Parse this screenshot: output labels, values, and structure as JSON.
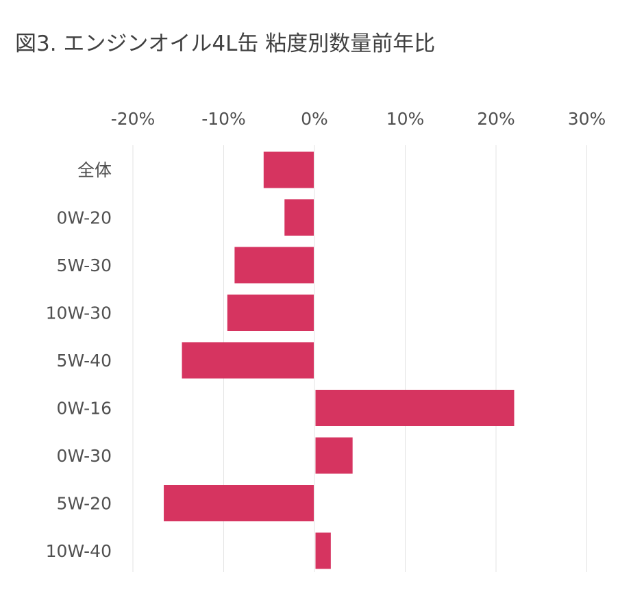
{
  "title": "図3. エンジンオイル4L缶 粘度別数量前年比",
  "chart_data": {
    "type": "bar",
    "orientation": "horizontal",
    "title": "図3. エンジンオイル4L缶 粘度別数量前年比",
    "xlabel": "",
    "ylabel": "",
    "categories": [
      "全体",
      "0W-20",
      "5W-30",
      "10W-30",
      "5W-40",
      "0W-16",
      "0W-30",
      "5W-20",
      "10W-40"
    ],
    "values": [
      -5.6,
      -3.3,
      -8.8,
      -9.6,
      -14.6,
      22.0,
      4.2,
      -16.6,
      1.8
    ],
    "value_unit": "%",
    "xlim": [
      -20,
      30
    ],
    "xticks": [
      -20,
      -10,
      0,
      10,
      20,
      30
    ],
    "xtick_labels": [
      "-20%",
      "-10%",
      "0%",
      "10%",
      "20%",
      "30%"
    ],
    "grid": true,
    "axis_position": "top",
    "bar_color": "#d63460",
    "gridline_color": "#e3e3e3"
  }
}
